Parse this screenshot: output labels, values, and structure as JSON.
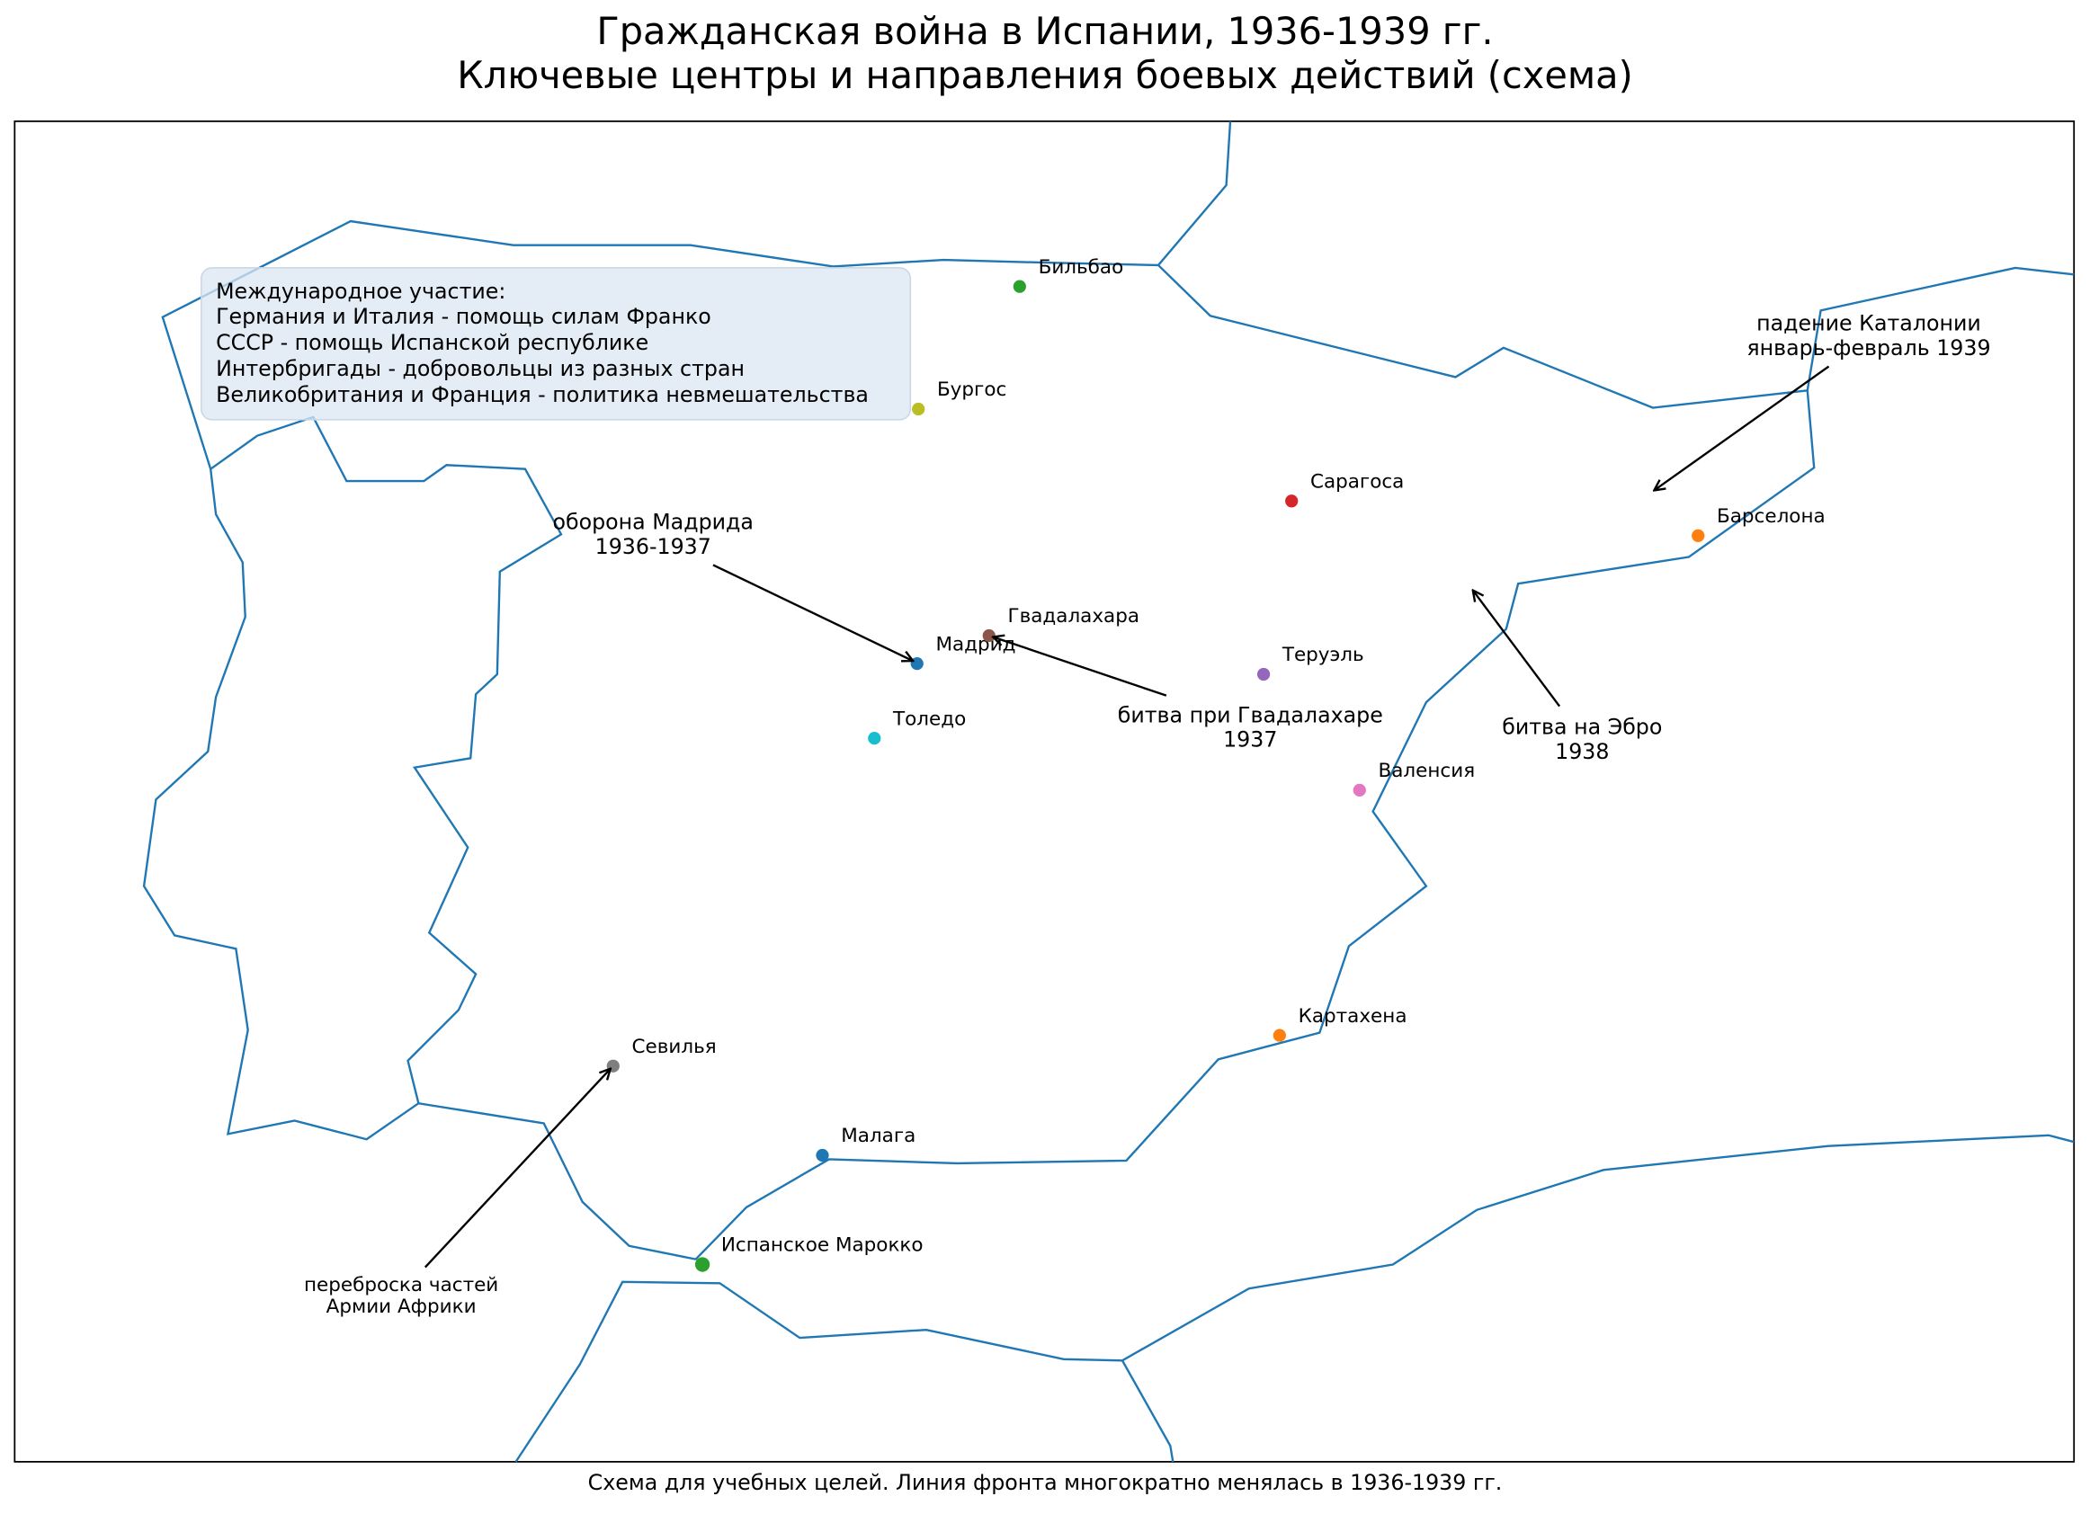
{
  "title": [
    "Гражданская война в Испании, 1936-1939 гг.",
    "Ключевые центры и направления боевых действий (схема)"
  ],
  "legend": {
    "title": "Международное участие:",
    "items": [
      "Германия и Италия - помощь силам Франко",
      "СССР - помощь Испанской республике",
      "Интербригады - добровольцы из разных стран",
      "Великобритания и Франция - политика невмешательства"
    ]
  },
  "cities": [
    {
      "name": "Мадрид",
      "color": "#1f77b4"
    },
    {
      "name": "Барселона",
      "color": "#ff7f0e"
    },
    {
      "name": "Бильбао",
      "color": "#2ca02c"
    },
    {
      "name": "Сарагоса",
      "color": "#d62728"
    },
    {
      "name": "Теруэль",
      "color": "#9467bd"
    },
    {
      "name": "Гвадалахара",
      "color": "#8c564b"
    },
    {
      "name": "Валенсия",
      "color": "#e377c2"
    },
    {
      "name": "Севилья",
      "color": "#7f7f7f"
    },
    {
      "name": "Бургос",
      "color": "#bcbd22"
    },
    {
      "name": "Толедо",
      "color": "#17becf"
    },
    {
      "name": "Малага",
      "color": "#1f77b4"
    },
    {
      "name": "Картахена",
      "color": "#ff7f0e"
    },
    {
      "name": "Испанское Марокко",
      "color": "#2ca02c"
    }
  ],
  "annotations": [
    {
      "lines": [
        "оборона Мадрида",
        "1936-1937"
      ]
    },
    {
      "lines": [
        "битва при Гвадалахаре",
        "1937"
      ]
    },
    {
      "lines": [
        "битва на Эбро",
        "1938"
      ]
    },
    {
      "lines": [
        "падение Каталонии",
        "январь-февраль 1939"
      ]
    },
    {
      "lines": [
        "переброска частей",
        "Армии Африки"
      ]
    }
  ],
  "footnote": "Схема для учебных целей. Линия фронта многократно менялась в 1936-1939 гг."
}
